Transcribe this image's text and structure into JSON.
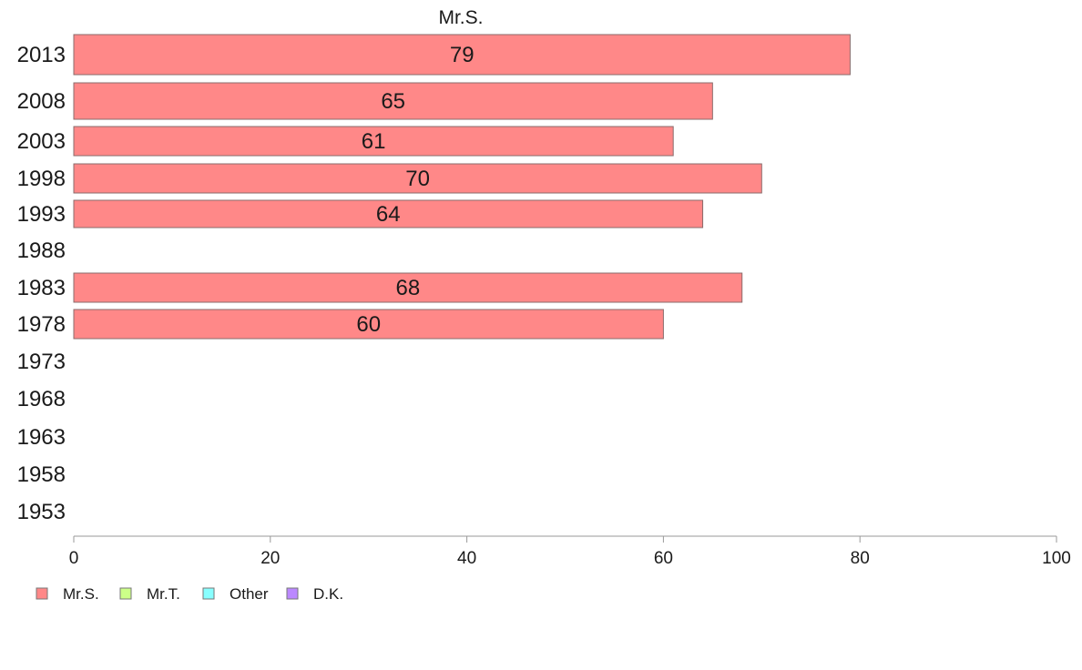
{
  "chart_data": {
    "type": "bar",
    "orientation": "horizontal",
    "title": "Mr.S.",
    "categories": [
      "2013",
      "2008",
      "2003",
      "1998",
      "1993",
      "1988",
      "1983",
      "1978",
      "1973",
      "1968",
      "1963",
      "1958",
      "1953"
    ],
    "series": [
      {
        "name": "Mr.S.",
        "color": "#ff8888",
        "values": [
          79,
          65,
          61,
          70,
          64,
          null,
          68,
          60,
          null,
          null,
          null,
          null,
          null
        ],
        "labels": [
          "79",
          "65",
          "61",
          "70",
          "64",
          "",
          "68",
          "60",
          "",
          "",
          "",
          "",
          ""
        ]
      }
    ],
    "xlim": [
      0,
      100
    ],
    "xticks": [
      "0",
      "20",
      "40",
      "60",
      "80",
      "100"
    ],
    "grid": false,
    "legend": {
      "position": "bottom-left",
      "entries": [
        {
          "name": "Mr.S.",
          "color": "#ff8888"
        },
        {
          "name": "Mr.T.",
          "color": "#ccff88"
        },
        {
          "name": "Other",
          "color": "#88ffff"
        },
        {
          "name": "D.K.",
          "color": "#bb88ff"
        }
      ]
    }
  }
}
